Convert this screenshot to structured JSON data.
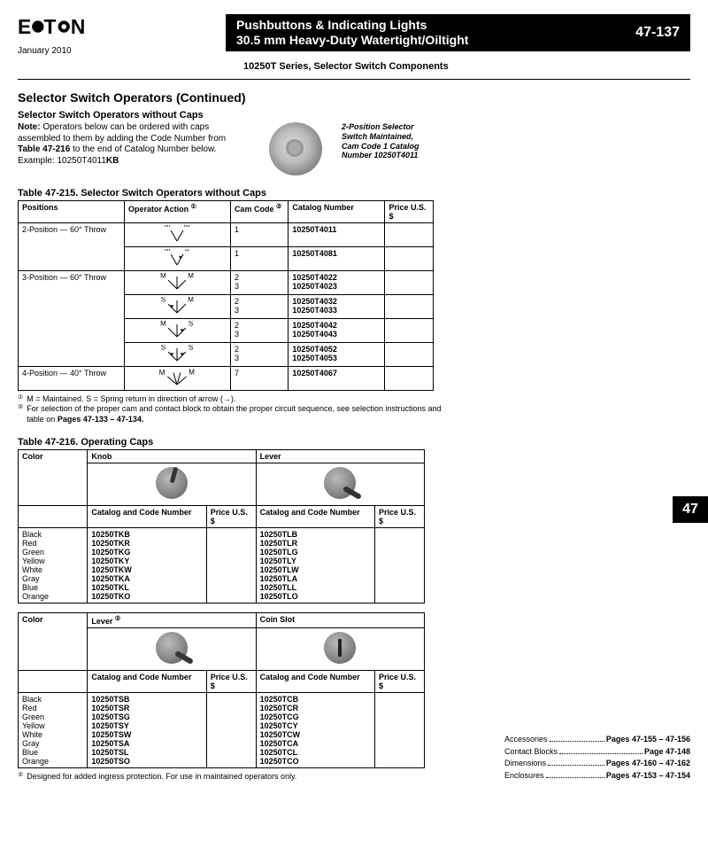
{
  "header": {
    "date": "January 2010",
    "title1": "Pushbuttons & Indicating Lights",
    "title2": "30.5 mm Heavy-Duty Watertight/Oiltight",
    "pageNumber": "47-137",
    "subhead": "10250T Series, Selector Switch Components"
  },
  "sectionTitle": "Selector Switch Operators (Continued)",
  "subTitle": "Selector Switch Operators without Caps",
  "note": {
    "label": "Note:",
    "text": " Operators below can be ordered with caps assembled to them by adding the Code Number from ",
    "bold1": "Table 47-216",
    "text2": " to the end of Catalog Number below. Example: 10250T4011",
    "bold2": "KB"
  },
  "caption": "2-Position Selector Switch Maintained, Cam Code 1 Catalog Number 10250T4011",
  "table215": {
    "caption": "Table 47-215. Selector Switch Operators without Caps",
    "headers": {
      "positions": "Positions",
      "action": "Operator Action",
      "cam": "Cam Code",
      "catalog": "Catalog Number",
      "price": "Price U.S. $"
    },
    "rows": [
      {
        "pos": "2-Position — 60° Throw",
        "posSpan": 2,
        "diag": "M|M",
        "cam": "1",
        "cat": "10250T4011"
      },
      {
        "pos": "",
        "diag": "M|S",
        "cam": "1",
        "cat": "10250T4081"
      },
      {
        "pos": "3-Position — 60° Throw",
        "posSpan": 4,
        "diag": "M|M|M",
        "cam": "2\n3",
        "cat": "10250T4022\n10250T4023"
      },
      {
        "pos": "",
        "diag": "S|M|M",
        "cam": "2\n3",
        "cat": "10250T4032\n10250T4033"
      },
      {
        "pos": "",
        "diag": "M|M|S",
        "cam": "2\n3",
        "cat": "10250T4042\n10250T4043"
      },
      {
        "pos": "",
        "diag": "S|M|S",
        "cam": "2\n3",
        "cat": "10250T4052\n10250T4053"
      },
      {
        "pos": "4-Position — 40° Throw",
        "posSpan": 1,
        "diag": "M|M|M|M",
        "cam": "7",
        "cat": "10250T4067"
      }
    ],
    "footnotes": [
      "M = Maintained. S = Spring return in direction of arrow (→).",
      "For selection of the proper cam and contact block to obtain the proper circuit sequence, see selection instructions and table on Pages 47-133 – 47-134."
    ]
  },
  "table216a": {
    "caption": "Table 47-216. Operating Caps",
    "headers": {
      "color": "Color",
      "knob": "Knob",
      "lever": "Lever",
      "catcode": "Catalog and Code Number",
      "price": "Price U.S. $"
    },
    "rows": [
      {
        "color": "Black",
        "knob": "10250TKB",
        "lever": "10250TLB"
      },
      {
        "color": "Red",
        "knob": "10250TKR",
        "lever": "10250TLR"
      },
      {
        "color": "Green",
        "knob": "10250TKG",
        "lever": "10250TLG"
      },
      {
        "color": "Yellow",
        "knob": "10250TKY",
        "lever": "10250TLY"
      },
      {
        "color": "White",
        "knob": "10250TKW",
        "lever": "10250TLW"
      },
      {
        "color": "Gray",
        "knob": "10250TKA",
        "lever": "10250TLA"
      },
      {
        "color": "Blue",
        "knob": "10250TKL",
        "lever": "10250TLL"
      },
      {
        "color": "Orange",
        "knob": "10250TKO",
        "lever": "10250TLO"
      }
    ]
  },
  "table216b": {
    "headers": {
      "color": "Color",
      "lever2": "Lever",
      "coin": "Coin Slot",
      "catcode": "Catalog and Code Number",
      "price": "Price U.S. $"
    },
    "rows": [
      {
        "color": "Black",
        "lever2": "10250TSB",
        "coin": "10250TCB"
      },
      {
        "color": "Red",
        "lever2": "10250TSR",
        "coin": "10250TCR"
      },
      {
        "color": "Green",
        "lever2": "10250TSG",
        "coin": "10250TCG"
      },
      {
        "color": "Yellow",
        "lever2": "10250TSY",
        "coin": "10250TCY"
      },
      {
        "color": "White",
        "lever2": "10250TSW",
        "coin": "10250TCW"
      },
      {
        "color": "Gray",
        "lever2": "10250TSA",
        "coin": "10250TCA"
      },
      {
        "color": "Blue",
        "lever2": "10250TSL",
        "coin": "10250TCL"
      },
      {
        "color": "Orange",
        "lever2": "10250TSO",
        "coin": "10250TCO"
      }
    ],
    "footnote": "Designed for added ingress protection. For use in maintained operators only."
  },
  "sideTab": "47",
  "refs": [
    {
      "label": "Accessories",
      "pages": "Pages 47-155 – 47-156"
    },
    {
      "label": "Contact Blocks",
      "pages": "Page 47-148"
    },
    {
      "label": "Dimensions",
      "pages": "Pages 47-160 – 47-162"
    },
    {
      "label": "Enclosures",
      "pages": "Pages 47-153 – 47-154"
    }
  ],
  "sup1": "①",
  "sup2": "②",
  "circled1": "①",
  "circled2": "②"
}
